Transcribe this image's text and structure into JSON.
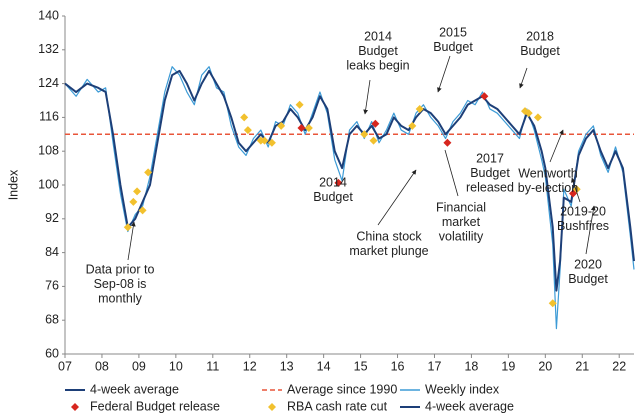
{
  "chart_data": {
    "type": "line",
    "y_label": "Index",
    "x": [
      2007.0,
      2007.3,
      2007.6,
      2007.9,
      2008.1,
      2008.3,
      2008.5,
      2008.7,
      2008.9,
      2009.1,
      2009.3,
      2009.5,
      2009.7,
      2009.9,
      2010.1,
      2010.3,
      2010.5,
      2010.7,
      2010.9,
      2011.1,
      2011.3,
      2011.5,
      2011.7,
      2011.9,
      2012.1,
      2012.3,
      2012.5,
      2012.7,
      2012.9,
      2013.1,
      2013.3,
      2013.5,
      2013.7,
      2013.9,
      2014.1,
      2014.3,
      2014.5,
      2014.7,
      2014.9,
      2015.1,
      2015.3,
      2015.5,
      2015.7,
      2015.9,
      2016.1,
      2016.3,
      2016.5,
      2016.7,
      2016.9,
      2017.1,
      2017.3,
      2017.5,
      2017.7,
      2017.9,
      2018.1,
      2018.3,
      2018.5,
      2018.7,
      2018.9,
      2019.1,
      2019.3,
      2019.5,
      2019.7,
      2019.9,
      2020.0,
      2020.2,
      2020.3,
      2020.4,
      2020.5,
      2020.7,
      2020.9,
      2021.1,
      2021.3,
      2021.5,
      2021.7,
      2021.9,
      2022.1,
      2022.3,
      2022.4
    ],
    "series": [
      {
        "name": "Weekly index",
        "color": "#3d9bd6",
        "width": 1.2,
        "values": [
          124,
          121,
          125,
          122,
          123,
          110,
          98,
          89,
          93,
          95,
          102,
          112,
          122,
          128,
          126,
          122,
          119,
          126,
          128,
          123,
          122,
          114,
          109,
          107,
          111,
          113,
          109,
          115,
          114,
          119,
          117,
          112,
          117,
          122,
          117,
          106,
          101,
          113,
          115,
          111,
          115,
          110,
          113,
          117,
          113,
          112,
          117,
          119,
          116,
          114,
          111,
          115,
          117,
          120,
          119,
          122,
          118,
          117,
          115,
          113,
          111,
          118,
          113,
          106,
          102,
          86,
          66,
          80,
          99,
          95,
          108,
          112,
          114,
          107,
          103,
          109,
          103,
          88,
          80
        ]
      },
      {
        "name": "4-week average",
        "color": "#1d3f78",
        "width": 2,
        "values": [
          124,
          122,
          124,
          123,
          122,
          112,
          100,
          90,
          92,
          96,
          100,
          110,
          120,
          126,
          127,
          124,
          120,
          124,
          127,
          124,
          121,
          116,
          110,
          108,
          110,
          112,
          110,
          114,
          115,
          118,
          116,
          113,
          116,
          121,
          118,
          108,
          104,
          112,
          114,
          112,
          114,
          111,
          112,
          116,
          114,
          113,
          116,
          118,
          117,
          115,
          112,
          114,
          116,
          119,
          120,
          121,
          119,
          118,
          116,
          114,
          112,
          117,
          114,
          108,
          104,
          90,
          75,
          82,
          97,
          96,
          107,
          111,
          113,
          108,
          104,
          108,
          104,
          90,
          82
        ]
      }
    ],
    "reference_line": {
      "name": "Average since 1990",
      "value": 112,
      "color": "#e8553a"
    },
    "markers": [
      {
        "name": "Federal Budget release",
        "color": "#d7261e",
        "x": [
          2013.4,
          2014.4,
          2015.4,
          2017.35,
          2018.35,
          2020.75
        ],
        "values": [
          113.5,
          100.5,
          114.5,
          110,
          121,
          98
        ]
      },
      {
        "name": "RBA cash rate cut",
        "color": "#f2c12e",
        "x": [
          2008.7,
          2008.85,
          2008.95,
          2009.1,
          2009.25,
          2011.85,
          2011.95,
          2012.3,
          2012.4,
          2012.6,
          2012.85,
          2013.35,
          2013.6,
          2015.1,
          2015.35,
          2016.4,
          2016.6,
          2019.45,
          2019.55,
          2019.8,
          2020.2,
          2020.85
        ],
        "values": [
          90,
          96,
          98.5,
          94,
          103,
          116,
          113,
          110.5,
          110.5,
          110,
          114,
          119,
          113.5,
          112,
          110.5,
          114,
          118,
          117.5,
          117,
          116,
          72,
          99
        ]
      }
    ],
    "extra_legend": [
      {
        "name": "4-week average",
        "color": "#1d3f78"
      }
    ],
    "xlim": [
      2007,
      2022.4
    ],
    "xticks": [
      {
        "value": 2007,
        "label": "07"
      },
      {
        "value": 2008,
        "label": "08"
      },
      {
        "value": 2009,
        "label": "09"
      },
      {
        "value": 2010,
        "label": "10"
      },
      {
        "value": 2011,
        "label": "11"
      },
      {
        "value": 2012,
        "label": "12"
      },
      {
        "value": 2013,
        "label": "13"
      },
      {
        "value": 2014,
        "label": "14"
      },
      {
        "value": 2015,
        "label": "15"
      },
      {
        "value": 2016,
        "label": "16"
      },
      {
        "value": 2017,
        "label": "17"
      },
      {
        "value": 2018,
        "label": "18"
      },
      {
        "value": 2019,
        "label": "19"
      },
      {
        "value": 2020,
        "label": "20"
      },
      {
        "value": 2021,
        "label": "21"
      },
      {
        "value": 2022,
        "label": "22"
      }
    ],
    "ylim": [
      60,
      140
    ],
    "yticks": [
      60,
      68,
      76,
      84,
      92,
      100,
      108,
      116,
      124,
      132,
      140
    ],
    "annotations": [
      {
        "lines": [
          "2014",
          "Budget",
          "leaks begin"
        ]
      },
      {
        "lines": [
          "2015",
          "Budget"
        ]
      },
      {
        "lines": [
          "2018",
          "Budget"
        ]
      },
      {
        "lines": [
          "2014",
          "Budget"
        ]
      },
      {
        "lines": [
          "2017",
          "Budget",
          "released"
        ]
      },
      {
        "lines": [
          "Wentworth",
          "by-election"
        ]
      },
      {
        "lines": [
          "2019-20",
          "Bushfires"
        ]
      },
      {
        "lines": [
          "Financial",
          "market",
          "volatility"
        ]
      },
      {
        "lines": [
          "China stock",
          "market plunge"
        ]
      },
      {
        "lines": [
          "2020",
          "Budget"
        ]
      },
      {
        "lines": [
          "Data prior to",
          "Sep-08 is",
          "monthly"
        ]
      }
    ]
  }
}
